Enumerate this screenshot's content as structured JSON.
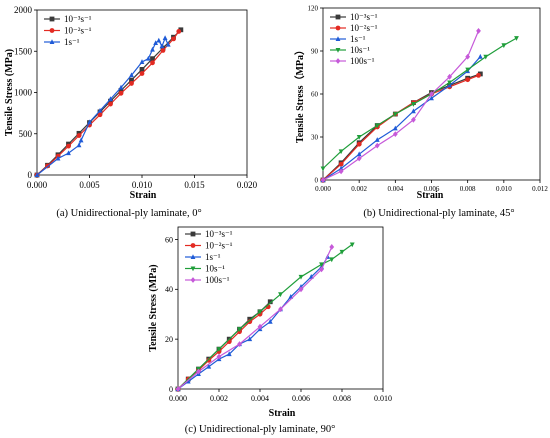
{
  "chart_data": [
    {
      "type": "line",
      "caption": "(a) Unidirectional-ply laminate, 0°",
      "xlabel": "Strain",
      "ylabel": "Tensile Stress (MPa)",
      "xlim": [
        0,
        0.02
      ],
      "ylim": [
        0,
        2000
      ],
      "xticks": [
        "0.000",
        "0.005",
        "0.010",
        "0.015",
        "0.020"
      ],
      "yticks": [
        "0",
        "500",
        "1000",
        "1500",
        "2000"
      ],
      "xtick_values": [
        0,
        0.005,
        0.01,
        0.015,
        0.02
      ],
      "ytick_values": [
        0,
        500,
        1000,
        1500,
        2000
      ],
      "legend_position": "top-left",
      "series": [
        {
          "name": "10⁻³s⁻¹",
          "color": "#3a3a3a",
          "marker": "square",
          "x": [
            0,
            0.001,
            0.002,
            0.003,
            0.004,
            0.005,
            0.006,
            0.007,
            0.008,
            0.009,
            0.01,
            0.011,
            0.012,
            0.013,
            0.0137
          ],
          "y": [
            0,
            118,
            245,
            375,
            505,
            635,
            765,
            895,
            1025,
            1150,
            1280,
            1410,
            1540,
            1670,
            1760
          ]
        },
        {
          "name": "10⁻²s⁻¹",
          "color": "#e32a22",
          "marker": "circle",
          "x": [
            0,
            0.001,
            0.002,
            0.003,
            0.004,
            0.005,
            0.006,
            0.007,
            0.008,
            0.009,
            0.01,
            0.011,
            0.012,
            0.013,
            0.0135
          ],
          "y": [
            0,
            110,
            228,
            350,
            478,
            605,
            730,
            860,
            990,
            1110,
            1230,
            1360,
            1510,
            1650,
            1740
          ]
        },
        {
          "name": "1s⁻¹",
          "color": "#1f5bd7",
          "marker": "triangle-up",
          "x": [
            0,
            0.002,
            0.003,
            0.004,
            0.0042,
            0.005,
            0.006,
            0.007,
            0.008,
            0.009,
            0.01,
            0.0106,
            0.011,
            0.0113,
            0.0116,
            0.0119,
            0.0122,
            0.0125
          ],
          "y": [
            0,
            200,
            265,
            360,
            420,
            640,
            780,
            920,
            1060,
            1210,
            1370,
            1410,
            1520,
            1600,
            1630,
            1560,
            1660,
            1580
          ]
        }
      ]
    },
    {
      "type": "line",
      "caption": "(b) Unidirectional-ply laminate, 45°",
      "xlabel": "Strain",
      "ylabel": "Tensile Stress（MPa）",
      "xlim": [
        0,
        0.012
      ],
      "ylim": [
        0,
        120
      ],
      "xticks": [
        "0.000",
        "0.002",
        "0.004",
        "0.006",
        "0.008",
        "0.010",
        "0.012"
      ],
      "yticks": [
        "0",
        "30",
        "60",
        "90",
        "120"
      ],
      "xtick_values": [
        0,
        0.002,
        0.004,
        0.006,
        0.008,
        0.01,
        0.012
      ],
      "ytick_values": [
        0,
        30,
        60,
        90,
        120
      ],
      "legend_position": "top-left",
      "series": [
        {
          "name": "10⁻³s⁻¹",
          "color": "#3a3a3a",
          "marker": "square",
          "x": [
            0,
            0.001,
            0.002,
            0.003,
            0.004,
            0.005,
            0.006,
            0.007,
            0.008,
            0.0087
          ],
          "y": [
            0,
            12,
            26,
            38,
            46,
            54,
            61,
            66,
            71,
            74
          ]
        },
        {
          "name": "10⁻²s⁻¹",
          "color": "#e32a22",
          "marker": "circle",
          "x": [
            0,
            0.001,
            0.002,
            0.003,
            0.004,
            0.005,
            0.006,
            0.007,
            0.008,
            0.0086
          ],
          "y": [
            0,
            11,
            25,
            37,
            46,
            54,
            60,
            65,
            70,
            73
          ]
        },
        {
          "name": "1s⁻¹",
          "color": "#1f5bd7",
          "marker": "triangle-up",
          "x": [
            0,
            0.001,
            0.002,
            0.003,
            0.004,
            0.005,
            0.006,
            0.007,
            0.008,
            0.0087
          ],
          "y": [
            0,
            8,
            18,
            28,
            36,
            48,
            57,
            66,
            76,
            86
          ]
        },
        {
          "name": "10s⁻¹",
          "color": "#1f9e3a",
          "marker": "triangle-down",
          "x": [
            0,
            0.001,
            0.002,
            0.003,
            0.004,
            0.005,
            0.006,
            0.007,
            0.008,
            0.009,
            0.01,
            0.0107
          ],
          "y": [
            8,
            20,
            30,
            38,
            46,
            53,
            60,
            68,
            77,
            86,
            94,
            99
          ]
        },
        {
          "name": "100s⁻¹",
          "color": "#c659d9",
          "marker": "diamond",
          "x": [
            0,
            0.001,
            0.002,
            0.003,
            0.004,
            0.005,
            0.006,
            0.007,
            0.008,
            0.0086
          ],
          "y": [
            0,
            6,
            15,
            24,
            32,
            42,
            60,
            72,
            86,
            104
          ]
        }
      ]
    },
    {
      "type": "line",
      "caption": "(c) Unidirectional-ply laminate, 90°",
      "xlabel": "Strain",
      "ylabel": "Tensile Stress (MPa)",
      "xlim": [
        0,
        0.01
      ],
      "ylim": [
        0,
        65
      ],
      "xticks": [
        "0.000",
        "0.002",
        "0.004",
        "0.006",
        "0.008",
        "0.010"
      ],
      "yticks": [
        "0",
        "20",
        "40",
        "60"
      ],
      "xtick_values": [
        0,
        0.002,
        0.004,
        0.006,
        0.008,
        0.01
      ],
      "ytick_values": [
        0,
        20,
        40,
        60
      ],
      "legend_position": "top-left",
      "series": [
        {
          "name": "10⁻³s⁻¹",
          "color": "#3a3a3a",
          "marker": "square",
          "x": [
            0,
            0.0005,
            0.001,
            0.0015,
            0.002,
            0.0025,
            0.003,
            0.0035,
            0.004,
            0.0045
          ],
          "y": [
            0,
            4,
            8,
            12,
            16,
            20,
            24,
            28,
            31,
            35
          ]
        },
        {
          "name": "10⁻²s⁻¹",
          "color": "#e32a22",
          "marker": "circle",
          "x": [
            0,
            0.0005,
            0.001,
            0.0015,
            0.002,
            0.0025,
            0.003,
            0.0035,
            0.004,
            0.0044
          ],
          "y": [
            0,
            4,
            7.5,
            11.5,
            15,
            19,
            23,
            27,
            30,
            33
          ]
        },
        {
          "name": "1s⁻¹",
          "color": "#1f5bd7",
          "marker": "triangle-up",
          "x": [
            0,
            0.0005,
            0.001,
            0.0015,
            0.002,
            0.0025,
            0.003,
            0.0035,
            0.004,
            0.0045,
            0.005,
            0.0055,
            0.006,
            0.0065,
            0.007,
            0.0073
          ],
          "y": [
            0,
            3,
            6,
            9,
            12,
            14,
            18,
            20,
            24,
            27,
            32,
            37,
            41,
            45,
            49,
            53
          ]
        },
        {
          "name": "10s⁻¹",
          "color": "#1f9e3a",
          "marker": "triangle-down",
          "x": [
            0,
            0.001,
            0.002,
            0.003,
            0.004,
            0.005,
            0.006,
            0.007,
            0.0075,
            0.008,
            0.0085
          ],
          "y": [
            0,
            8,
            16,
            24,
            31,
            38,
            45,
            50,
            52,
            55,
            58
          ]
        },
        {
          "name": "100s⁻¹",
          "color": "#c659d9",
          "marker": "diamond",
          "x": [
            0,
            0.001,
            0.002,
            0.003,
            0.004,
            0.005,
            0.006,
            0.007,
            0.0075
          ],
          "y": [
            0,
            7,
            13,
            18,
            25,
            32,
            40,
            48,
            57
          ]
        }
      ]
    }
  ]
}
